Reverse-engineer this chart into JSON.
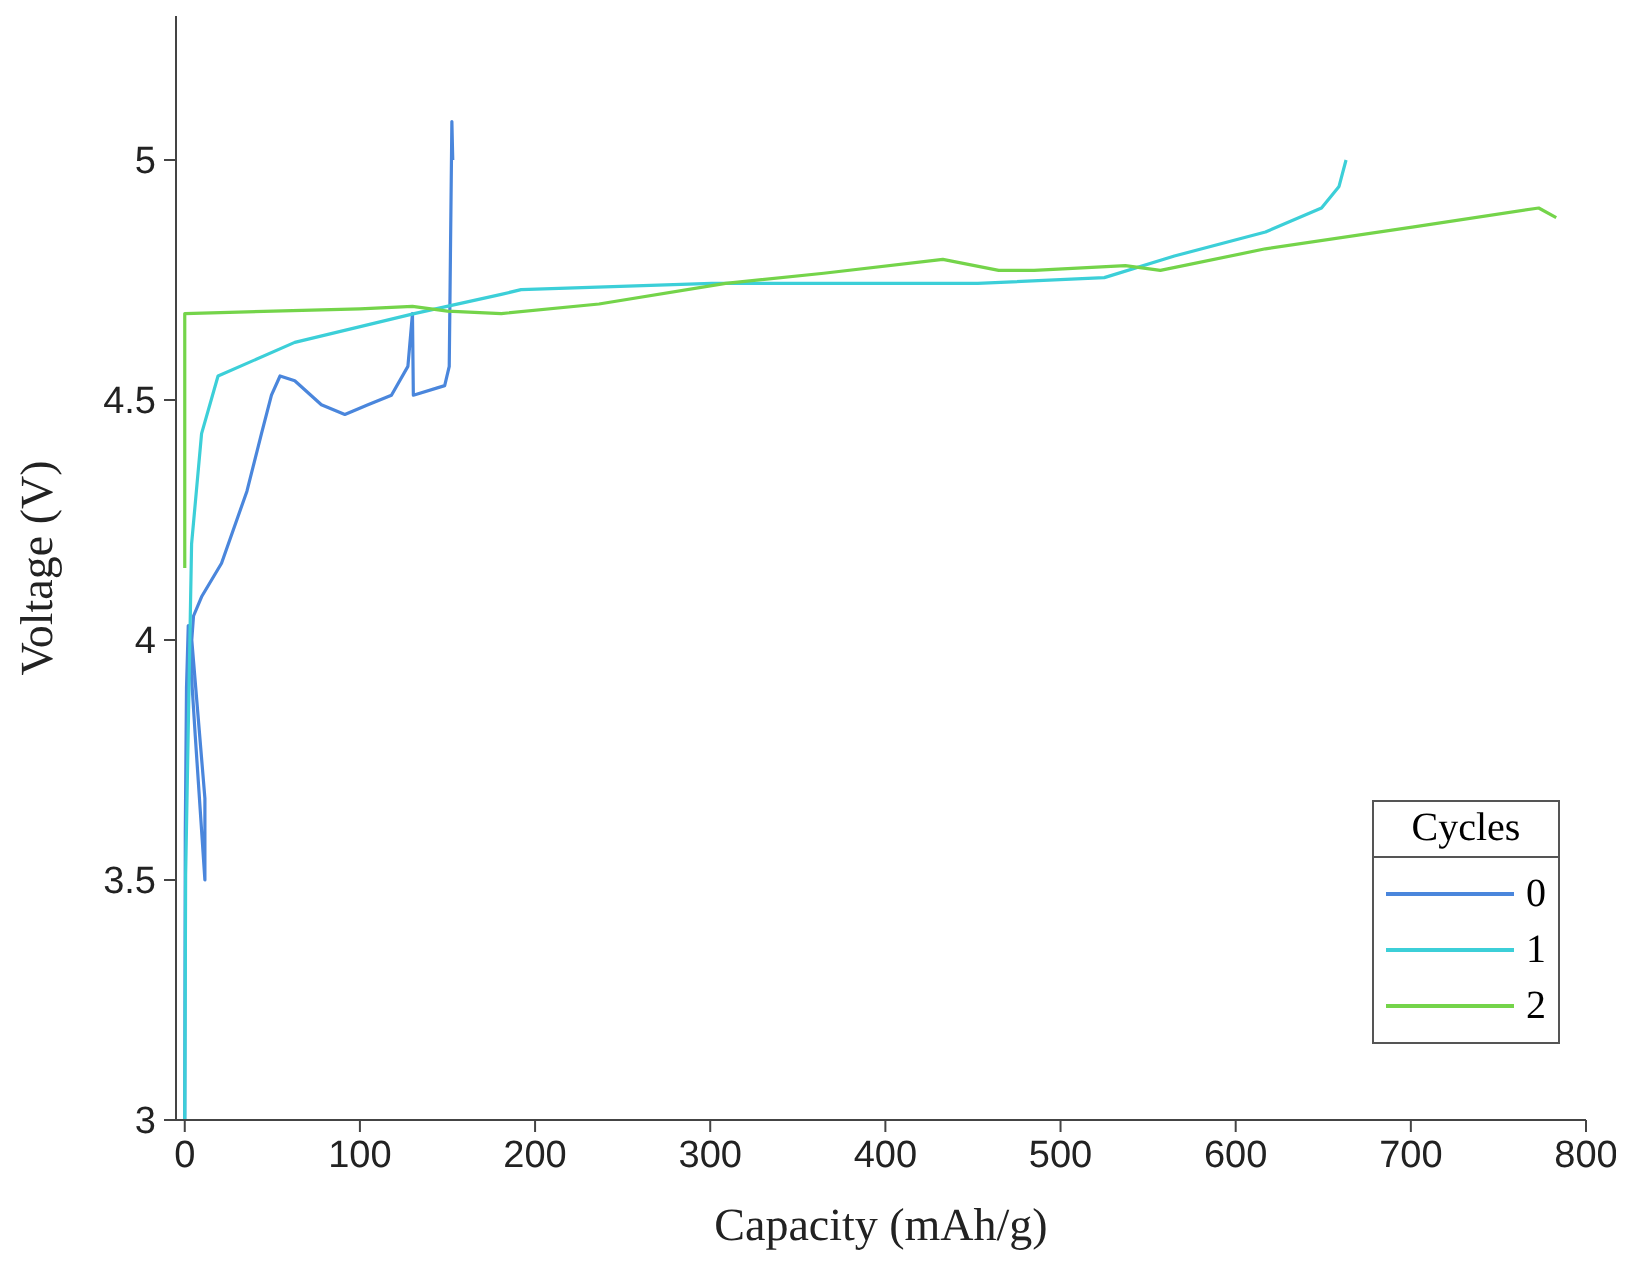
{
  "chart_data": {
    "type": "line",
    "xlabel": "Capacity (mAh/g)",
    "ylabel": "Voltage (V)",
    "legend_title": "Cycles",
    "legend": "bottom right",
    "grid": false,
    "marker": "none",
    "line_style": "solid",
    "xlim": [
      -5,
      800
    ],
    "ylim": [
      3,
      5.3
    ],
    "xticks": [
      0,
      100,
      200,
      300,
      400,
      500,
      600,
      700,
      800
    ],
    "yticks": [
      3,
      3.5,
      4,
      4.5,
      5
    ],
    "series": [
      {
        "name": "0",
        "color": "#4a86dc",
        "x": [
          0,
          0.3,
          1,
          2,
          6,
          11.5,
          11.5,
          4,
          5,
          9.6,
          21,
          35.5,
          43.8,
          49.5,
          54.4,
          62.8,
          78,
          91.4,
          104.6,
          118,
          127.4,
          130,
          130.5,
          148.4,
          151,
          152.5,
          153
        ],
        "values": [
          3.0,
          3.6,
          3.9,
          4.03,
          3.8,
          3.5,
          3.67,
          4.0,
          4.05,
          4.09,
          4.16,
          4.31,
          4.43,
          4.51,
          4.55,
          4.54,
          4.49,
          4.47,
          4.49,
          4.51,
          4.57,
          4.68,
          4.51,
          4.53,
          4.57,
          5.08,
          5.0
        ]
      },
      {
        "name": "1",
        "color": "#3ccfd8",
        "x": [
          0,
          0.5,
          3.9,
          9.6,
          19,
          62.8,
          131,
          180.7,
          192,
          300.8,
          452.8,
          525,
          565,
          617,
          649,
          659,
          663
        ],
        "values": [
          3.0,
          3.51,
          4.2,
          4.43,
          4.55,
          4.62,
          4.68,
          4.72,
          4.73,
          4.743,
          4.743,
          4.755,
          4.8,
          4.85,
          4.9,
          4.945,
          5.0
        ]
      },
      {
        "name": "2",
        "color": "#74d44a",
        "x": [
          0,
          0,
          100,
          130,
          150,
          180.7,
          236.5,
          308.8,
          364.8,
          432.8,
          464.7,
          484.9,
          537,
          557,
          617,
          700.8,
          773,
          783
        ],
        "values": [
          4.15,
          4.68,
          4.69,
          4.695,
          4.685,
          4.68,
          4.7,
          4.743,
          4.764,
          4.793,
          4.77,
          4.77,
          4.78,
          4.77,
          4.815,
          4.86,
          4.9,
          4.88
        ]
      }
    ]
  }
}
